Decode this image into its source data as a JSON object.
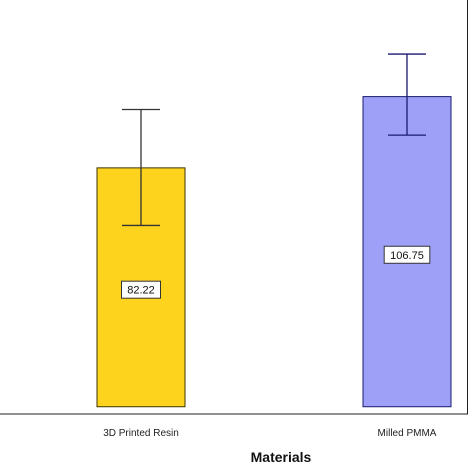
{
  "chart_data": {
    "type": "bar",
    "title": "",
    "xlabel": "Materials",
    "ylabel": "",
    "categories": [
      "3D Printed Resin",
      "Milled PMMA"
    ],
    "values": [
      82.22,
      106.75
    ],
    "value_labels": [
      "82.22",
      "106.75"
    ],
    "error_bars": [
      {
        "low": 62.4,
        "high": 102.3
      },
      {
        "low": 93.5,
        "high": 121.4
      }
    ],
    "ylim": [
      -2.5,
      140
    ],
    "bar_colors": [
      "#fdd31d",
      "#9ea0f7"
    ],
    "bar_edge_colors": [
      "#3d3500",
      "#1a1a70"
    ],
    "error_bar_colors": [
      "#333333",
      "#1a1a70"
    ],
    "grid": false,
    "legend": "none"
  }
}
